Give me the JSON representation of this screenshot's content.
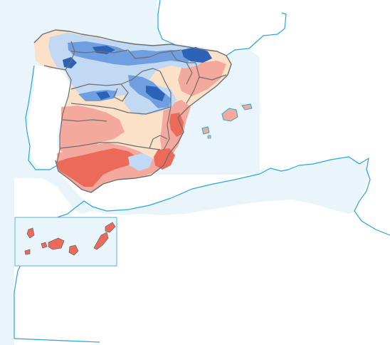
{
  "map": {
    "colors": {
      "sea": "#eaf5fb",
      "land_background": "#ffffff",
      "coastline": "#2aa6d6",
      "region_border": "#6e6e6e",
      "beige": "#fbe1c7",
      "light_red": "#f3a99e",
      "red": "#ec6a59",
      "light_blue": "#c1d9f3",
      "medium_blue": "#6f9fe0",
      "dark_blue": "#2c63b7",
      "inset_frame": "#6cc3e0"
    },
    "legend": null,
    "inset": {
      "subject": "Canary Islands"
    }
  }
}
